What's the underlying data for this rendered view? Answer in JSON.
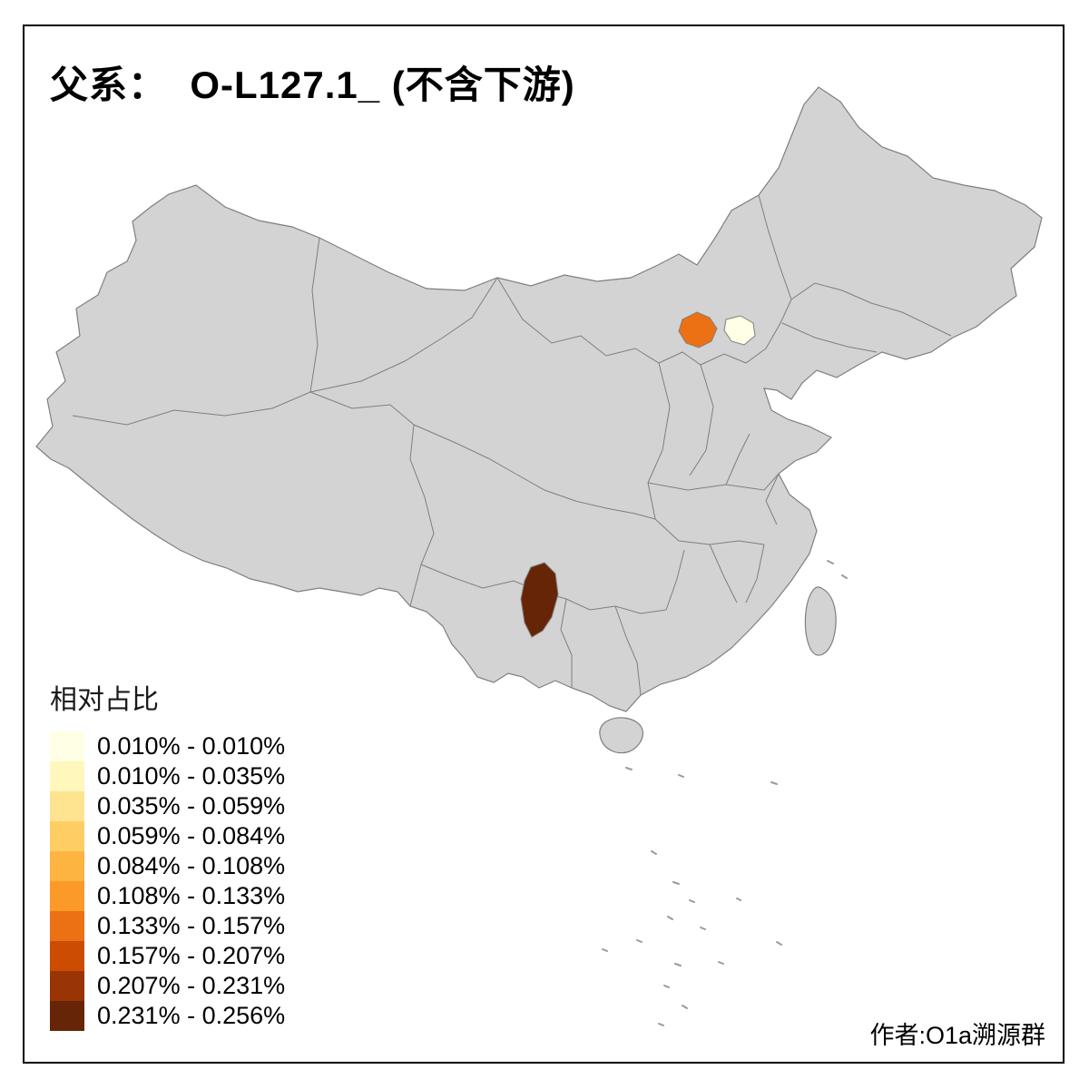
{
  "title": "父系：  O-L127.1_ (不含下游)",
  "legend": {
    "title": "相对占比",
    "items": [
      {
        "label": "0.010% - 0.010%",
        "color": "#FFFFE5"
      },
      {
        "label": "0.010% - 0.035%",
        "color": "#FFF7BC"
      },
      {
        "label": "0.035% - 0.059%",
        "color": "#FEE391"
      },
      {
        "label": "0.059% - 0.084%",
        "color": "#FECE65"
      },
      {
        "label": "0.084% - 0.108%",
        "color": "#FEB440"
      },
      {
        "label": "0.108% - 0.133%",
        "color": "#FB9A29"
      },
      {
        "label": "0.133% - 0.157%",
        "color": "#EC7014"
      },
      {
        "label": "0.157% - 0.207%",
        "color": "#CC4C02"
      },
      {
        "label": "0.207% - 0.231%",
        "color": "#993404"
      },
      {
        "label": "0.231% - 0.256%",
        "color": "#662506"
      }
    ]
  },
  "credit": "作者:O1a溯源群",
  "map": {
    "land_fill": "#D3D3D3",
    "border_color": "#7F7F7F",
    "background": "#FFFFFF",
    "highlights": [
      {
        "color": "#EC7014"
      },
      {
        "color": "#FFFFE5"
      },
      {
        "color": "#662506"
      }
    ]
  }
}
